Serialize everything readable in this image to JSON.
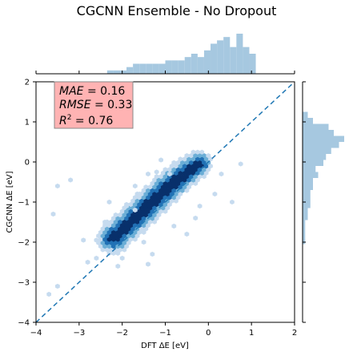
{
  "chart_data": {
    "type": "hexbin",
    "title": "CGCNN Ensemble - No Dropout",
    "xlabel": "DFT ΔE [eV]",
    "ylabel": "CGCNN ΔE [eV]",
    "xlim": [
      -4,
      2
    ],
    "ylim": [
      -4,
      2
    ],
    "xticks": [
      -4,
      -3,
      -2,
      -1,
      0,
      1,
      2
    ],
    "yticks": [
      -4,
      -3,
      -2,
      -1,
      0,
      1,
      2
    ],
    "grid": false,
    "stats": {
      "mae": "= 0.16",
      "rmse": "= 0.33",
      "r2": "= 0.76"
    },
    "parity_line": {
      "x": [
        -4,
        2
      ],
      "y": [
        -4,
        2
      ]
    },
    "colors": {
      "hex_light": "#c6dbef",
      "hex_mid": "#6baed6",
      "hex_dark": "#2171b5",
      "hex_darkest": "#08306b",
      "marginal": "#a6c8e0",
      "parity": "#1f77b4",
      "stats_box": "#ffb3b3"
    },
    "core_trend": {
      "x": [
        -2.2,
        -1.8,
        -1.4,
        -1.0,
        -0.6,
        -0.2
      ],
      "y": [
        -1.9,
        -1.5,
        -1.1,
        -0.7,
        -0.35,
        -0.05
      ]
    },
    "scattered_points": {
      "x": [
        -3.7,
        -3.5,
        -3.6,
        -3.5,
        -3.2,
        -2.6,
        -2.9,
        -2.4,
        -2.1,
        -2.0,
        -1.7,
        -1.9,
        -1.6,
        -1.7,
        -1.4,
        -1.2,
        -1.3,
        -1.4,
        -0.8,
        -0.5,
        -0.3,
        0.15,
        0.55,
        0.75,
        -2.6,
        -1.1,
        -0.9,
        -0.2,
        0.3,
        -1.5,
        -2.3,
        -2.8
      ],
      "y": [
        -3.3,
        -3.1,
        -1.3,
        -0.6,
        -0.45,
        -1.95,
        -1.95,
        -1.5,
        -2.6,
        -2.4,
        -1.2,
        -1.1,
        -0.8,
        -0.6,
        -0.3,
        -0.25,
        -2.3,
        -2.55,
        -1.6,
        -1.8,
        -1.4,
        -0.8,
        -1.0,
        -0.05,
        -2.4,
        0.05,
        -0.3,
        -1.1,
        -0.3,
        -2.0,
        -1.0,
        -2.5
      ]
    },
    "top_marginal": {
      "bin_edges_start": -4,
      "bin_width": 0.15,
      "counts": [
        0,
        0,
        0,
        0,
        0,
        0,
        0,
        0,
        0,
        0,
        0,
        1,
        1,
        1,
        2,
        3,
        3,
        3,
        3,
        3,
        4,
        4,
        4,
        5,
        6,
        5,
        7,
        9,
        10,
        11,
        8,
        12,
        8,
        6,
        0,
        0,
        0,
        0,
        0,
        0
      ]
    },
    "right_marginal": {
      "bin_edges_start": -4,
      "bin_width": 0.15,
      "counts": [
        0,
        0,
        0,
        0,
        0,
        0,
        0,
        0,
        0,
        0,
        0,
        0,
        0,
        1,
        1,
        1,
        1,
        2,
        2,
        3,
        3,
        3,
        4,
        4,
        6,
        5,
        8,
        9,
        11,
        14,
        16,
        12,
        10,
        4,
        2,
        0,
        0,
        0,
        0,
        0
      ]
    }
  }
}
